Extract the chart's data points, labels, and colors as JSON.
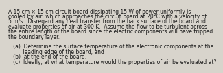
{
  "background_color": "#d8d4cc",
  "text_color": "#1a1a1a",
  "lines": [
    "A 15 cm × 15 cm circuit board dissipating 15 W of power uniformly is",
    "cooled by air, which approaches the circuit board at 20°C with a velocity of",
    "5 m/s.  Disregard any heat transfer from the back surface of the board and",
    "evaluate properties of air at 300 K.  Assume the flow to be turbulent across",
    "the entire length of the board since the electric components will have tripped",
    "the boundary layer.",
    "",
    "   (a)  Determine the surface temperature of the electronic components at the",
    "         leading edge of the board, and",
    "   (b)  at the end of the board.",
    "   (c)  Ideally, at what temperature would the properties of air be evaluated at?"
  ],
  "fontsize": 5.5,
  "font_family": "DejaVu Sans"
}
